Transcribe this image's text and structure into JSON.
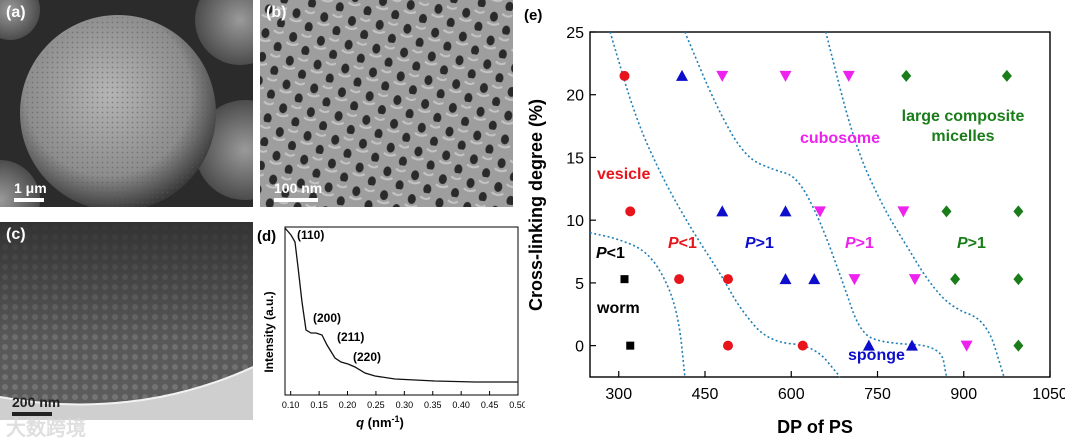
{
  "panel_a": {
    "label": "(a)",
    "scale": "1 μm"
  },
  "panel_b": {
    "label": "(b)",
    "scale": "100 nm"
  },
  "panel_c": {
    "label": "(c)",
    "scale": "200 nm"
  },
  "panel_d": {
    "label": "(d)",
    "xlabel_var": "q",
    "xlabel_unit": " (nm",
    "xlabel_exp": "-1",
    "xlabel_close": ")",
    "ylabel": "Intensity (a.u.)",
    "xticks": [
      "0.10",
      "0.15",
      "0.20",
      "0.25",
      "0.30",
      "0.35",
      "0.40",
      "0.45",
      "0.50"
    ],
    "peaks": [
      "(110)",
      "(200)",
      "(211)",
      "(220)"
    ]
  },
  "chart_data": {
    "type": "scatter",
    "panel_label": "(e)",
    "title": "",
    "xlabel": "DP of PS",
    "ylabel": "Cross-linking degree (%)",
    "xlim": [
      250,
      1050
    ],
    "ylim": [
      -2.5,
      25
    ],
    "xticks": [
      "300",
      "450",
      "600",
      "750",
      "900",
      "1050"
    ],
    "yticks": [
      "0",
      "5",
      "10",
      "15",
      "20",
      "25"
    ],
    "series": [
      {
        "name": "worm",
        "marker": "square",
        "color": "#000000",
        "points": [
          [
            310,
            5.3
          ],
          [
            320,
            0
          ]
        ]
      },
      {
        "name": "vesicle",
        "marker": "circle",
        "color": "#e8141c",
        "points": [
          [
            310,
            21.5
          ],
          [
            320,
            10.7
          ],
          [
            405,
            5.3
          ],
          [
            490,
            5.3
          ],
          [
            490,
            0
          ],
          [
            620,
            0
          ]
        ]
      },
      {
        "name": "sponge",
        "marker": "triangle-up",
        "color": "#0d0dcc",
        "points": [
          [
            410,
            21.5
          ],
          [
            480,
            10.7
          ],
          [
            590,
            10.7
          ],
          [
            590,
            5.3
          ],
          [
            640,
            5.3
          ],
          [
            735,
            0
          ],
          [
            810,
            0
          ]
        ]
      },
      {
        "name": "cubosome",
        "marker": "triangle-down",
        "color": "#ee22ee",
        "points": [
          [
            480,
            21.5
          ],
          [
            590,
            21.5
          ],
          [
            700,
            21.5
          ],
          [
            650,
            10.7
          ],
          [
            795,
            10.7
          ],
          [
            710,
            5.3
          ],
          [
            815,
            5.3
          ],
          [
            905,
            0
          ]
        ]
      },
      {
        "name": "large composite micelles",
        "marker": "diamond",
        "color": "#1a7d1a",
        "points": [
          [
            800,
            21.5
          ],
          [
            975,
            21.5
          ],
          [
            870,
            10.7
          ],
          [
            995,
            10.7
          ],
          [
            885,
            5.3
          ],
          [
            995,
            5.3
          ],
          [
            995,
            0
          ]
        ]
      }
    ],
    "region_labels": [
      {
        "text": "vesicle",
        "color": "#e8141c"
      },
      {
        "text": "cubosome",
        "color": "#ee22ee"
      },
      {
        "text": "large composite",
        "color": "#1a7d1a"
      },
      {
        "text": "micelles",
        "color": "#1a7d1a"
      },
      {
        "text": "worm",
        "color": "#000000"
      },
      {
        "text": "sponge",
        "color": "#0d0dcc"
      }
    ],
    "p_labels": [
      {
        "var": "P",
        "rel": "<1",
        "color": "#000000"
      },
      {
        "var": "P",
        "rel": "<1",
        "color": "#e8141c"
      },
      {
        "var": "P",
        "rel": ">1",
        "color": "#0d0dcc"
      },
      {
        "var": "P",
        "rel": ">1",
        "color": "#ee22ee"
      },
      {
        "var": "P",
        "rel": ">1",
        "color": "#1a7d1a"
      }
    ],
    "boundaries": [
      [
        [
          250,
          9
        ],
        [
          300,
          8.5
        ],
        [
          350,
          7.5
        ],
        [
          385,
          5
        ],
        [
          405,
          2
        ],
        [
          415,
          -2.5
        ]
      ],
      [
        [
          285,
          25
        ],
        [
          330,
          18
        ],
        [
          380,
          13
        ],
        [
          430,
          9
        ],
        [
          480,
          5.5
        ],
        [
          510,
          3
        ],
        [
          560,
          0.3
        ],
        [
          640,
          0
        ],
        [
          685,
          -2.5
        ]
      ],
      [
        [
          415,
          25
        ],
        [
          470,
          19
        ],
        [
          520,
          15
        ],
        [
          570,
          14
        ],
        [
          610,
          13.5
        ],
        [
          650,
          10
        ],
        [
          690,
          5
        ],
        [
          720,
          1
        ],
        [
          760,
          0.2
        ],
        [
          860,
          0
        ],
        [
          870,
          -2.5
        ]
      ],
      [
        [
          660,
          25
        ],
        [
          710,
          16
        ],
        [
          760,
          11
        ],
        [
          800,
          8
        ],
        [
          840,
          5
        ],
        [
          880,
          3
        ],
        [
          940,
          2
        ],
        [
          970,
          -2.5
        ]
      ]
    ]
  },
  "watermark": "大数跨境"
}
